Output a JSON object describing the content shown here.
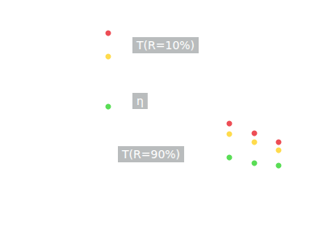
{
  "chart_data": {
    "type": "scatter",
    "x": [
      134,
      284,
      315,
      345
    ],
    "series": [
      {
        "color": "#e8202a",
        "values": [
          250,
          138,
          126,
          115
        ]
      },
      {
        "color": "#ffd21f",
        "values": [
          221,
          125,
          115,
          105
        ]
      },
      {
        "color": "#2fd52a",
        "values": [
          159,
          96,
          89,
          86
        ]
      }
    ],
    "annotations": [
      "T(R=10%)",
      "η",
      "T(R=90%)"
    ],
    "xlim": [
      0,
      400
    ],
    "xticks": [
      0,
      400
    ],
    "ylim": [
      0,
      291
    ],
    "yticks": [
      0,
      291
    ],
    "grid": false,
    "tick_labels": false,
    "marker": "circle"
  }
}
